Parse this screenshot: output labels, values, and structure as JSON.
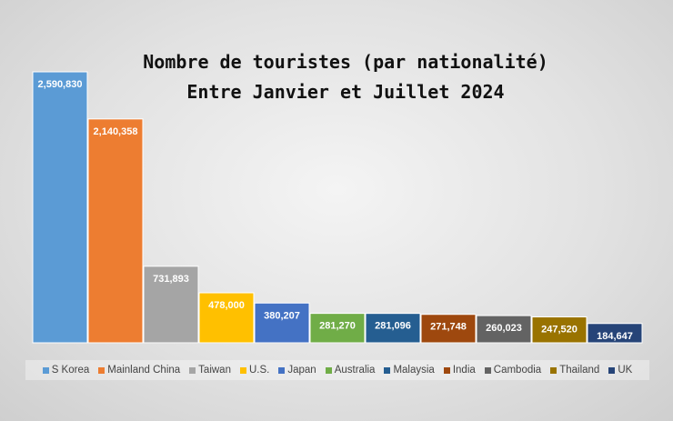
{
  "chart_data": {
    "type": "bar",
    "title_lines": [
      "Nombre de touristes (par nationalité)",
      "Entre Janvier et Juillet 2024"
    ],
    "categories": [
      "S Korea",
      "Mainland China",
      "Taiwan",
      "U.S.",
      "Japan",
      "Australia",
      "Malaysia",
      "India",
      "Cambodia",
      "Thailand",
      "UK"
    ],
    "values": [
      2590830,
      2140358,
      731893,
      478000,
      380207,
      281270,
      281096,
      271748,
      260023,
      247520,
      184647
    ],
    "data_labels": [
      "2,590,830",
      "2,140,358",
      "731,893",
      "478,000",
      "380,207",
      "281,270",
      "281,096",
      "271,748",
      "260,023",
      "247,520",
      "184,647"
    ],
    "colors": [
      "#5b9bd5",
      "#ed7d31",
      "#a5a5a5",
      "#ffc000",
      "#4472c4",
      "#70ad47",
      "#255e91",
      "#9e480e",
      "#636363",
      "#997300",
      "#264478"
    ],
    "ylim": [
      0,
      2600000
    ],
    "grid": false,
    "legend": "bottom"
  }
}
